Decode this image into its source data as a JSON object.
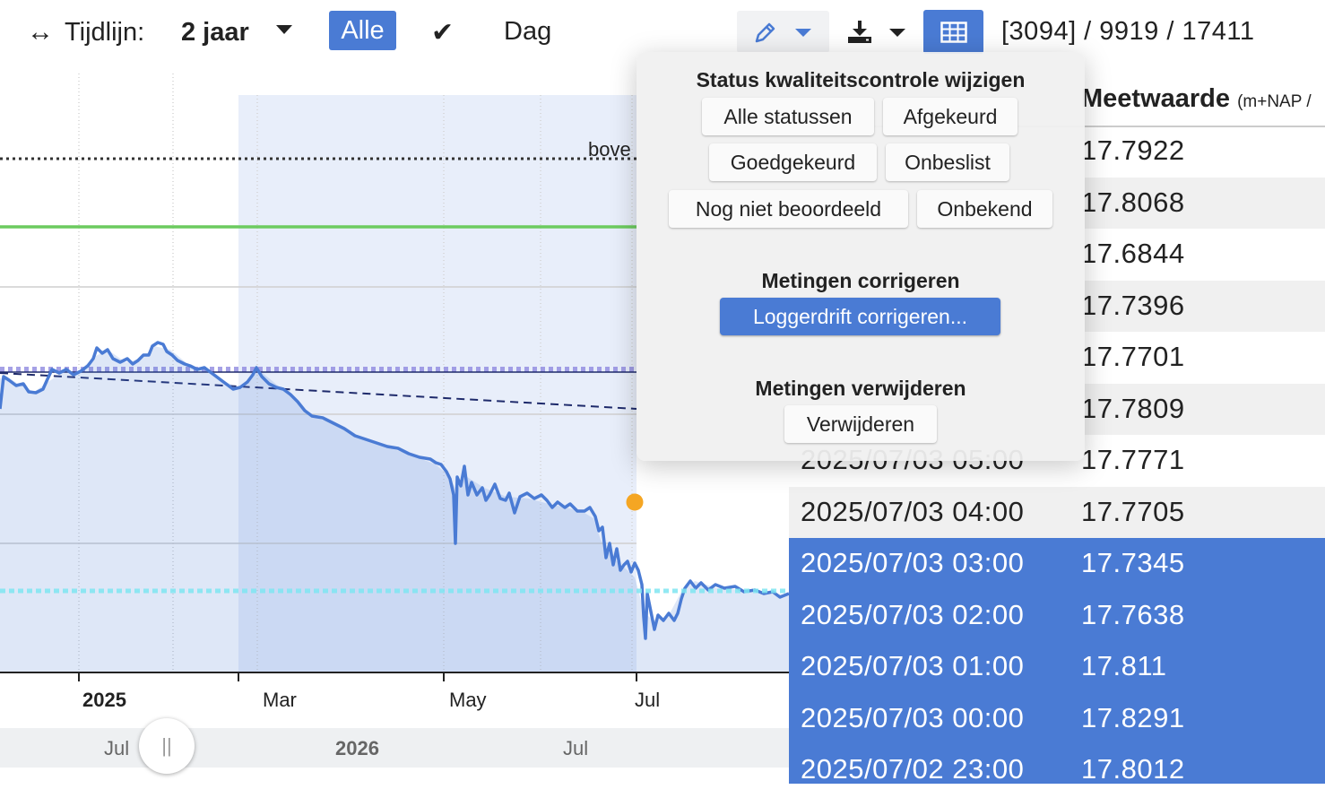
{
  "toolbar": {
    "timeline_icon": "↔",
    "timeline_label": "Tijdlijn:",
    "timeline_value": "2 jaar",
    "btn_alle": "Alle",
    "check_icon": "✔",
    "btn_dag": "Dag",
    "edit_icon": "pencil-icon",
    "download_icon": "download-icon",
    "table_icon": "table-icon",
    "counts": "[3094] / 9919 / 17411",
    "accent": "#4a7bd4"
  },
  "chart": {
    "threshold_label": "bove",
    "x_ticks": [
      {
        "label": "2025",
        "bold": true
      },
      {
        "label": "Mar",
        "bold": false
      },
      {
        "label": "May",
        "bold": false
      },
      {
        "label": "Jul",
        "bold": false
      }
    ],
    "series_color": "#4a7bd4",
    "reference_line_color": "#6ccb5f",
    "lower_line_color": "#7fe6f2",
    "highlight_point_color": "#f5a623"
  },
  "navigator": {
    "labels": [
      {
        "label": "Jul",
        "bold": false
      },
      {
        "label": "2026",
        "bold": true
      },
      {
        "label": "Jul",
        "bold": false
      }
    ],
    "handle_glyph": "||"
  },
  "table": {
    "header": {
      "column": "Meetwaarde",
      "unit": "(m+NAP /"
    },
    "rows": [
      {
        "timestamp": "",
        "value": "17.7922",
        "state": "normal"
      },
      {
        "timestamp": "",
        "value": "17.8068",
        "state": "alt"
      },
      {
        "timestamp": "",
        "value": "17.6844",
        "state": "normal"
      },
      {
        "timestamp": "",
        "value": "17.7396",
        "state": "alt"
      },
      {
        "timestamp": "",
        "value": "17.7701",
        "state": "normal"
      },
      {
        "timestamp": "",
        "value": "17.7809",
        "state": "alt"
      },
      {
        "timestamp": "2025/07/03 05:00",
        "value": "17.7771",
        "state": "normal"
      },
      {
        "timestamp": "2025/07/03 04:00",
        "value": "17.7705",
        "state": "alt"
      },
      {
        "timestamp": "2025/07/03 03:00",
        "value": "17.7345",
        "state": "sel"
      },
      {
        "timestamp": "2025/07/03 02:00",
        "value": "17.7638",
        "state": "sel"
      },
      {
        "timestamp": "2025/07/03 01:00",
        "value": "17.811",
        "state": "sel"
      },
      {
        "timestamp": "2025/07/03 00:00",
        "value": "17.8291",
        "state": "sel"
      },
      {
        "timestamp": "2025/07/02 23:00",
        "value": "17.8012",
        "state": "sel"
      }
    ]
  },
  "popup": {
    "status_heading": "Status kwaliteitscontrole wijzigen",
    "status_buttons": [
      "Alle statussen",
      "Afgekeurd",
      "Goedgekeurd",
      "Onbeslist",
      "Nog niet beoordeeld",
      "Onbekend"
    ],
    "correct_heading": "Metingen corrigeren",
    "correct_button": "Loggerdrift corrigeren...",
    "delete_heading": "Metingen verwijderen",
    "delete_button": "Verwijderen"
  }
}
